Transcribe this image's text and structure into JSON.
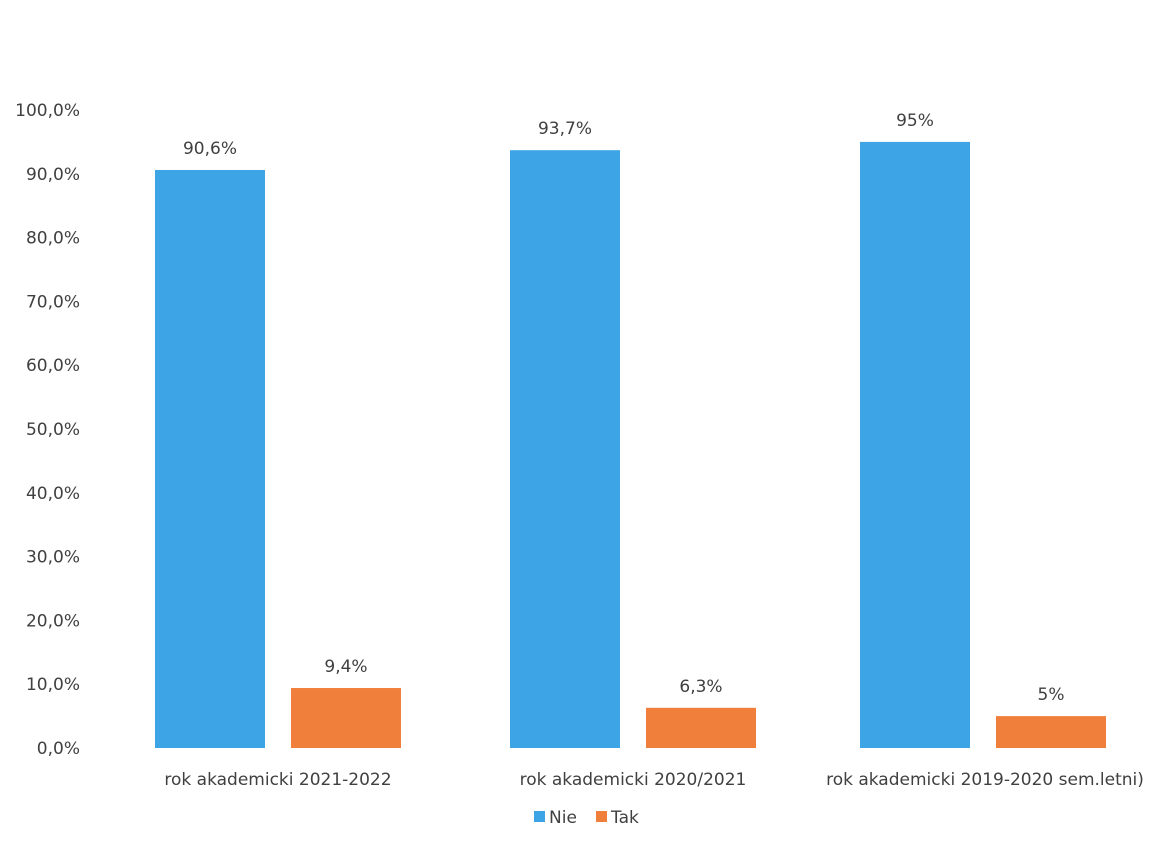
{
  "chart_data": {
    "type": "bar",
    "categories": [
      "rok akademicki 2021-2022",
      "rok akademicki 2020/2021",
      "rok akademicki 2019-2020 sem.letni)"
    ],
    "series": [
      {
        "name": "Nie",
        "color": "#3DA5E6",
        "values": [
          90.6,
          93.7,
          95
        ],
        "labels": [
          "90,6%",
          "93,7%",
          "95%"
        ]
      },
      {
        "name": "Tak",
        "color": "#F07F3C",
        "values": [
          9.4,
          6.3,
          5
        ],
        "labels": [
          "9,4%",
          "6,3%",
          "5%"
        ]
      }
    ],
    "ylim": [
      0,
      100
    ],
    "yticks": [
      "0,0%",
      "10,0%",
      "20,0%",
      "30,0%",
      "40,0%",
      "50,0%",
      "60,0%",
      "70,0%",
      "80,0%",
      "90,0%",
      "100,0%"
    ],
    "legend_position": "bottom-center",
    "grid": false
  }
}
